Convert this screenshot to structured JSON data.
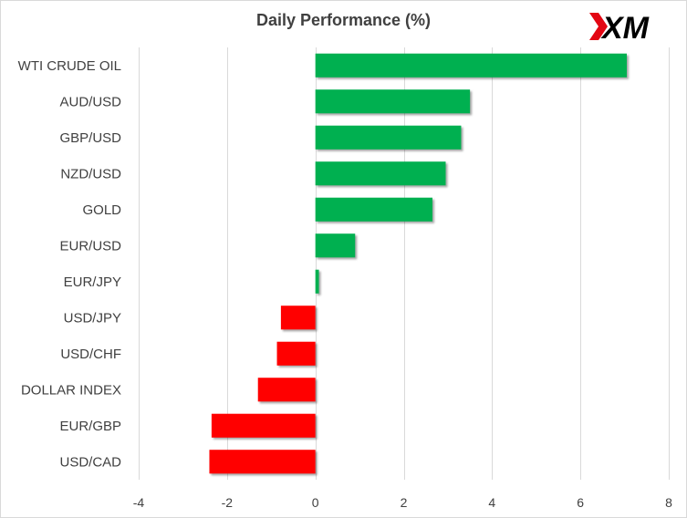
{
  "chart_data": {
    "type": "bar",
    "orientation": "horizontal",
    "title": "Daily Performance (%)",
    "xlabel": "",
    "ylabel": "",
    "categories": [
      "WTI CRUDE OIL",
      "AUD/USD",
      "GBP/USD",
      "NZD/USD",
      "GOLD",
      "EUR/USD",
      "EUR/JPY",
      "USD/JPY",
      "USD/CHF",
      "DOLLAR INDEX",
      "EUR/GBP",
      "USD/CAD"
    ],
    "values": [
      7.05,
      3.5,
      3.3,
      2.95,
      2.65,
      0.9,
      0.08,
      -0.78,
      -0.87,
      -1.3,
      -2.35,
      -2.4
    ],
    "xlim": [
      -4,
      8
    ],
    "xticks": [
      -4,
      -2,
      0,
      2,
      4,
      6,
      8
    ],
    "grid": "vertical",
    "legend": "none",
    "colors": {
      "positive": "#00b050",
      "negative": "#ff0000",
      "grid": "#d9d9d9",
      "text": "#404040"
    }
  },
  "logo": {
    "text": "XM",
    "accent": "#e30613",
    "color": "#000000"
  }
}
